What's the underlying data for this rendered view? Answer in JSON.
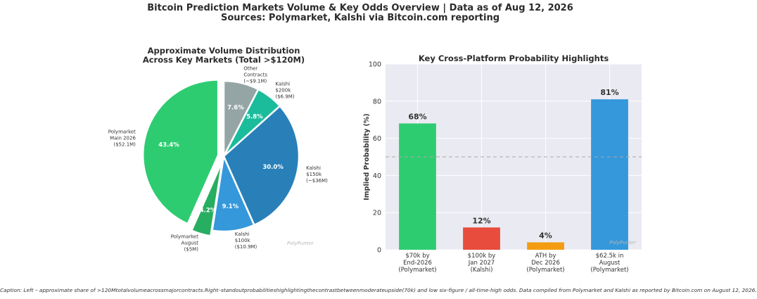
{
  "title_line1": "Bitcoin Prediction Markets Volume & Key Odds Overview | Data as of Aug 12, 2026",
  "title_line2": "Sources: Polymarket, Kalshi via Bitcoin.com reporting",
  "caption": "Caption: Left – approximate share of >120Mtotalvolumeacrossmajorcontracts.Right–standoutprobabilitieshighlightingthecontrastbetweenmoderateupside(70k) and low six-figure / all-time-high odds. Data compiled from Polymarket and Kalshi as reported by Bitcoin.com on August 12, 2026.",
  "watermark": "PolyPunter",
  "chart_data": [
    {
      "type": "pie",
      "title": "Approximate Volume Distribution\nAcross Key Markets (Total >$120M)",
      "slices": [
        {
          "label": "Polymarket\nMain 2026\n($52.1M)",
          "value": 43.4,
          "pct_label": "43.4%",
          "color": "#2ecc71",
          "explode": true
        },
        {
          "label": "Polymarket\nAugust\n($5M)",
          "value": 4.2,
          "pct_label": "4.2%",
          "color": "#27ae60",
          "explode": true
        },
        {
          "label": "Kalshi\n$100k\n($10.9M)",
          "value": 9.1,
          "pct_label": "9.1%",
          "color": "#3498db",
          "explode": false
        },
        {
          "label": "Kalshi\n$150k\n(~$36M)",
          "value": 30.0,
          "pct_label": "30.0%",
          "color": "#2980b9",
          "explode": false
        },
        {
          "label": "Kalshi\n$200k\n($6.9M)",
          "value": 5.8,
          "pct_label": "5.8%",
          "color": "#1abc9c",
          "explode": false
        },
        {
          "label": "Other\nContracts\n(~$9.1M)",
          "value": 7.6,
          "pct_label": "7.6%",
          "color": "#95a5a6",
          "explode": false
        }
      ]
    },
    {
      "type": "bar",
      "title": "Key Cross-Platform Probability Highlights",
      "ylabel": "Implied Probability (%)",
      "ylim": [
        0,
        100
      ],
      "yticks": [
        0,
        20,
        40,
        60,
        80,
        100
      ],
      "reference_line": 50,
      "grid": true,
      "categories": [
        "$70k by\nEnd-2026\n(Polymarket)",
        "$100k by\nJan 2027\n(Kalshi)",
        "ATH by\nDec 2026\n(Polymarket)",
        "$62.5k in\nAugust\n(Polymarket)"
      ],
      "values": [
        68,
        12,
        4,
        81
      ],
      "value_labels": [
        "68%",
        "12%",
        "4%",
        "81%"
      ],
      "colors": [
        "#2ecc71",
        "#e74c3c",
        "#f39c12",
        "#3498db"
      ]
    }
  ]
}
